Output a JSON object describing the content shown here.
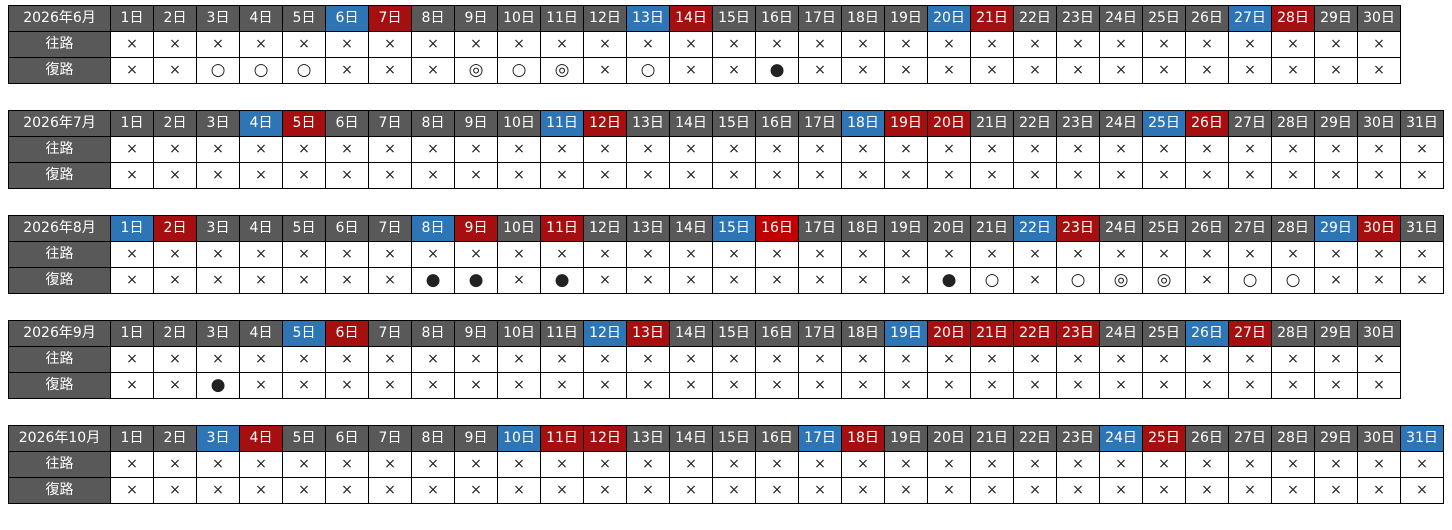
{
  "row_labels": {
    "outbound": "往路",
    "return": "復路"
  },
  "colors": {
    "header": "#595959",
    "saturday": "#2e75b6",
    "holiday": "#a50f0f",
    "obon": "#c00000"
  },
  "legend_symbols": {
    "unavailable": "×",
    "available": "○",
    "plenty": "◎",
    "few": "●"
  },
  "months": [
    {
      "title": "2026年6月",
      "days": [
        "1日",
        "2日",
        "3日",
        "4日",
        "5日",
        "6日",
        "7日",
        "8日",
        "9日",
        "10日",
        "11日",
        "12日",
        "13日",
        "14日",
        "15日",
        "16日",
        "17日",
        "18日",
        "19日",
        "20日",
        "21日",
        "22日",
        "23日",
        "24日",
        "25日",
        "26日",
        "27日",
        "28日",
        "29日",
        "30日"
      ],
      "saturdays": [
        6,
        13,
        20,
        27
      ],
      "holidays": [
        7,
        14,
        21,
        28
      ],
      "obon": [],
      "outbound": [
        "×",
        "×",
        "×",
        "×",
        "×",
        "×",
        "×",
        "×",
        "×",
        "×",
        "×",
        "×",
        "×",
        "×",
        "×",
        "×",
        "×",
        "×",
        "×",
        "×",
        "×",
        "×",
        "×",
        "×",
        "×",
        "×",
        "×",
        "×",
        "×",
        "×"
      ],
      "return": [
        "×",
        "×",
        "○",
        "○",
        "○",
        "×",
        "×",
        "×",
        "◎",
        "○",
        "◎",
        "×",
        "○",
        "×",
        "×",
        "●",
        "×",
        "×",
        "×",
        "×",
        "×",
        "×",
        "×",
        "×",
        "×",
        "×",
        "×",
        "×",
        "×",
        "×"
      ]
    },
    {
      "title": "2026年7月",
      "days": [
        "1日",
        "2日",
        "3日",
        "4日",
        "5日",
        "6日",
        "7日",
        "8日",
        "9日",
        "10日",
        "11日",
        "12日",
        "13日",
        "14日",
        "15日",
        "16日",
        "17日",
        "18日",
        "19日",
        "20日",
        "21日",
        "22日",
        "23日",
        "24日",
        "25日",
        "26日",
        "27日",
        "28日",
        "29日",
        "30日",
        "31日"
      ],
      "saturdays": [
        4,
        11,
        18,
        25
      ],
      "holidays": [
        5,
        12,
        19,
        20,
        26
      ],
      "obon": [],
      "outbound": [
        "×",
        "×",
        "×",
        "×",
        "×",
        "×",
        "×",
        "×",
        "×",
        "×",
        "×",
        "×",
        "×",
        "×",
        "×",
        "×",
        "×",
        "×",
        "×",
        "×",
        "×",
        "×",
        "×",
        "×",
        "×",
        "×",
        "×",
        "×",
        "×",
        "×",
        "×"
      ],
      "return": [
        "×",
        "×",
        "×",
        "×",
        "×",
        "×",
        "×",
        "×",
        "×",
        "×",
        "×",
        "×",
        "×",
        "×",
        "×",
        "×",
        "×",
        "×",
        "×",
        "×",
        "×",
        "×",
        "×",
        "×",
        "×",
        "×",
        "×",
        "×",
        "×",
        "×",
        "×"
      ]
    },
    {
      "title": "2026年8月",
      "days": [
        "1日",
        "2日",
        "3日",
        "4日",
        "5日",
        "6日",
        "7日",
        "8日",
        "9日",
        "10日",
        "11日",
        "12日",
        "13日",
        "14日",
        "15日",
        "16日",
        "17日",
        "18日",
        "19日",
        "20日",
        "21日",
        "22日",
        "23日",
        "24日",
        "25日",
        "26日",
        "27日",
        "28日",
        "29日",
        "30日",
        "31日"
      ],
      "saturdays": [
        1,
        8,
        15,
        22,
        29
      ],
      "holidays": [
        2,
        9,
        11,
        23,
        30
      ],
      "obon": [
        16
      ],
      "outbound": [
        "×",
        "×",
        "×",
        "×",
        "×",
        "×",
        "×",
        "×",
        "×",
        "×",
        "×",
        "×",
        "×",
        "×",
        "×",
        "×",
        "×",
        "×",
        "×",
        "×",
        "×",
        "×",
        "×",
        "×",
        "×",
        "×",
        "×",
        "×",
        "×",
        "×",
        "×"
      ],
      "return": [
        "×",
        "×",
        "×",
        "×",
        "×",
        "×",
        "×",
        "●",
        "●",
        "×",
        "●",
        "×",
        "×",
        "×",
        "×",
        "×",
        "×",
        "×",
        "×",
        "●",
        "○",
        "×",
        "○",
        "◎",
        "◎",
        "×",
        "○",
        "○",
        "×",
        "×",
        "×"
      ]
    },
    {
      "title": "2026年9月",
      "days": [
        "1日",
        "2日",
        "3日",
        "4日",
        "5日",
        "6日",
        "7日",
        "8日",
        "9日",
        "10日",
        "11日",
        "12日",
        "13日",
        "14日",
        "15日",
        "16日",
        "17日",
        "18日",
        "19日",
        "20日",
        "21日",
        "22日",
        "23日",
        "24日",
        "25日",
        "26日",
        "27日",
        "28日",
        "29日",
        "30日"
      ],
      "saturdays": [
        5,
        12,
        19,
        26
      ],
      "holidays": [
        6,
        13,
        20,
        21,
        22,
        23,
        27
      ],
      "obon": [],
      "outbound": [
        "×",
        "×",
        "×",
        "×",
        "×",
        "×",
        "×",
        "×",
        "×",
        "×",
        "×",
        "×",
        "×",
        "×",
        "×",
        "×",
        "×",
        "×",
        "×",
        "×",
        "×",
        "×",
        "×",
        "×",
        "×",
        "×",
        "×",
        "×",
        "×",
        "×"
      ],
      "return": [
        "×",
        "×",
        "●",
        "×",
        "×",
        "×",
        "×",
        "×",
        "×",
        "×",
        "×",
        "×",
        "×",
        "×",
        "×",
        "×",
        "×",
        "×",
        "×",
        "×",
        "×",
        "×",
        "×",
        "×",
        "×",
        "×",
        "×",
        "×",
        "×",
        "×"
      ]
    },
    {
      "title": "2026年10月",
      "days": [
        "1日",
        "2日",
        "3日",
        "4日",
        "5日",
        "6日",
        "7日",
        "8日",
        "9日",
        "10日",
        "11日",
        "12日",
        "13日",
        "14日",
        "15日",
        "16日",
        "17日",
        "18日",
        "19日",
        "20日",
        "21日",
        "22日",
        "23日",
        "24日",
        "25日",
        "26日",
        "27日",
        "28日",
        "29日",
        "30日",
        "31日"
      ],
      "saturdays": [
        3,
        10,
        17,
        24,
        31
      ],
      "holidays": [
        4,
        11,
        12,
        18,
        25
      ],
      "obon": [],
      "outbound": [
        "×",
        "×",
        "×",
        "×",
        "×",
        "×",
        "×",
        "×",
        "×",
        "×",
        "×",
        "×",
        "×",
        "×",
        "×",
        "×",
        "×",
        "×",
        "×",
        "×",
        "×",
        "×",
        "×",
        "×",
        "×",
        "×",
        "×",
        "×",
        "×",
        "×",
        "×"
      ],
      "return": [
        "×",
        "×",
        "×",
        "×",
        "×",
        "×",
        "×",
        "×",
        "×",
        "×",
        "×",
        "×",
        "×",
        "×",
        "×",
        "×",
        "×",
        "×",
        "×",
        "×",
        "×",
        "×",
        "×",
        "×",
        "×",
        "×",
        "×",
        "×",
        "×",
        "×",
        "×"
      ]
    }
  ]
}
